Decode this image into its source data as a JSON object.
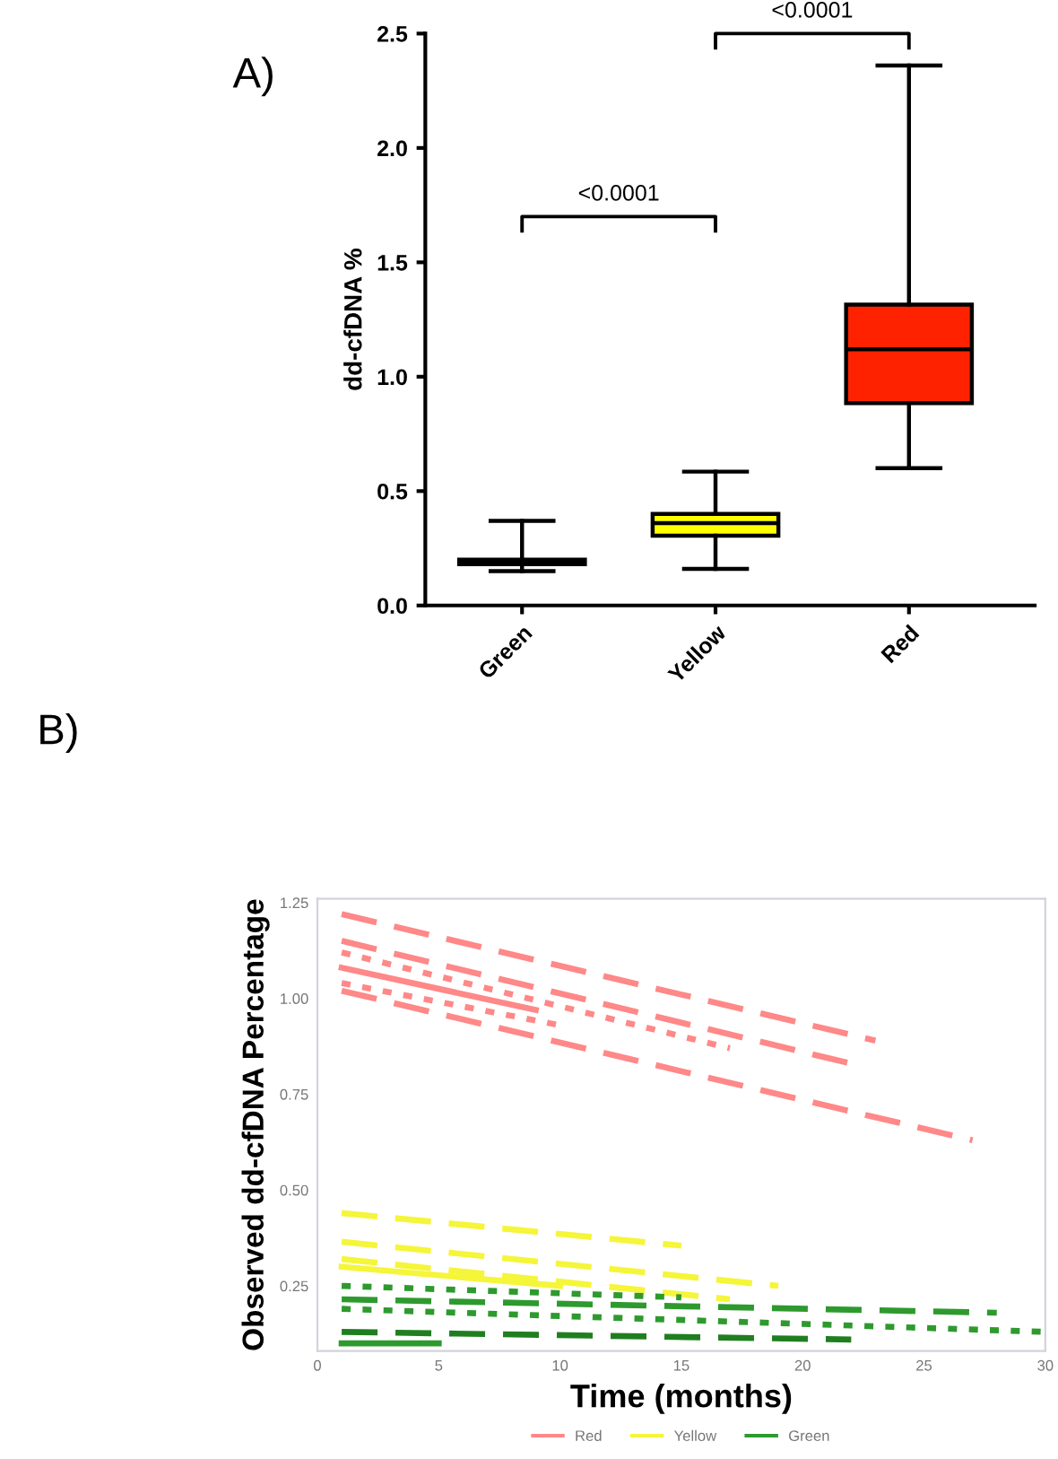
{
  "chart_data": [
    {
      "type": "box",
      "title": "A)",
      "ylabel": "dd-cfDNA %",
      "categories": [
        "Green",
        "Yellow",
        "Red"
      ],
      "boxes": [
        {
          "low": 0.15,
          "q1": 0.18,
          "median": 0.19,
          "q3": 0.2,
          "high": 0.37
        },
        {
          "low": 0.16,
          "q1": 0.305,
          "median": 0.36,
          "q3": 0.4,
          "high": 0.585
        },
        {
          "low": 0.6,
          "q1": 0.885,
          "median": 1.12,
          "q3": 1.315,
          "high": 2.36
        }
      ],
      "colors": [
        "#ffffff",
        "#ffff00",
        "#ff2200"
      ],
      "ylim": [
        0,
        2.5
      ],
      "yticks": [
        {
          "value": 0,
          "label": "0.0"
        },
        {
          "value": 0.5,
          "label": "0.5"
        },
        {
          "value": 1,
          "label": "1.0"
        },
        {
          "value": 1.5,
          "label": "1.5"
        },
        {
          "value": 2,
          "label": "2.0"
        },
        {
          "value": 2.5,
          "label": "2.5"
        }
      ],
      "annotations": [
        "<0.0001",
        "<0.0001"
      ],
      "grid": false
    },
    {
      "type": "line",
      "title": "B)",
      "xlabel": "Time (months)",
      "ylabel": "Observed dd-cfDNA Percentage",
      "series": [
        {
          "name": "Red",
          "color": "#ff8888",
          "x": [
            1,
            23
          ],
          "values": [
            1.22,
            0.89
          ],
          "line_style": "dashed"
        },
        {
          "color": "#ff8888",
          "x": [
            1,
            22
          ],
          "values": [
            1.15,
            0.83
          ],
          "line_style": "dashed"
        },
        {
          "color": "#ff8888",
          "x": [
            1,
            17
          ],
          "values": [
            1.12,
            0.87
          ],
          "line_style": "dotted"
        },
        {
          "color": "#ff8888",
          "x": [
            1,
            9
          ],
          "values": [
            1.08,
            0.97
          ],
          "line_style": "solid"
        },
        {
          "color": "#ff8888",
          "x": [
            1,
            10
          ],
          "values": [
            1.04,
            0.93
          ],
          "line_style": "dotted"
        },
        {
          "color": "#ff8888",
          "x": [
            1,
            27
          ],
          "values": [
            1.02,
            0.63
          ],
          "line_style": "dashed"
        },
        {
          "name": "Yellow",
          "color": "#f5f53a",
          "x": [
            1,
            15
          ],
          "values": [
            0.44,
            0.355
          ],
          "line_style": "dashed"
        },
        {
          "color": "#f5f53a",
          "x": [
            1,
            19
          ],
          "values": [
            0.365,
            0.25
          ],
          "line_style": "dashed"
        },
        {
          "color": "#f5f53a",
          "x": [
            1,
            17
          ],
          "values": [
            0.32,
            0.215
          ],
          "line_style": "dashed"
        },
        {
          "color": "#f5f53a",
          "x": [
            1,
            10
          ],
          "values": [
            0.3,
            0.25
          ],
          "line_style": "solid"
        },
        {
          "name": "Green",
          "color": "#2e9a2e",
          "x": [
            1,
            15
          ],
          "values": [
            0.25,
            0.22
          ],
          "line_style": "dotted"
        },
        {
          "color": "#2e9a2e",
          "x": [
            1,
            28
          ],
          "values": [
            0.215,
            0.18
          ],
          "line_style": "dashed"
        },
        {
          "color": "#2e9a2e",
          "x": [
            1,
            30
          ],
          "values": [
            0.19,
            0.13
          ],
          "line_style": "dotted"
        },
        {
          "color": "#1f7f1f",
          "x": [
            1,
            22
          ],
          "values": [
            0.13,
            0.11
          ],
          "line_style": "dashed"
        },
        {
          "color": "#2e9a2e",
          "x": [
            1,
            5
          ],
          "values": [
            0.1,
            0.1
          ],
          "line_style": "solid"
        }
      ],
      "xlim": [
        0,
        30
      ],
      "xticks": [
        0,
        5,
        10,
        15,
        20,
        25,
        30
      ],
      "ylim": [
        0.08,
        1.26
      ],
      "yticks": [
        {
          "value": 0.25,
          "label": "0.25"
        },
        {
          "value": 0.5,
          "label": "0.50"
        },
        {
          "value": 0.75,
          "label": "0.75"
        },
        {
          "value": 1,
          "label": "1.00"
        },
        {
          "value": 1.25,
          "label": "1.25"
        }
      ],
      "legend": "bottom",
      "grid": false,
      "marker": "none"
    }
  ]
}
